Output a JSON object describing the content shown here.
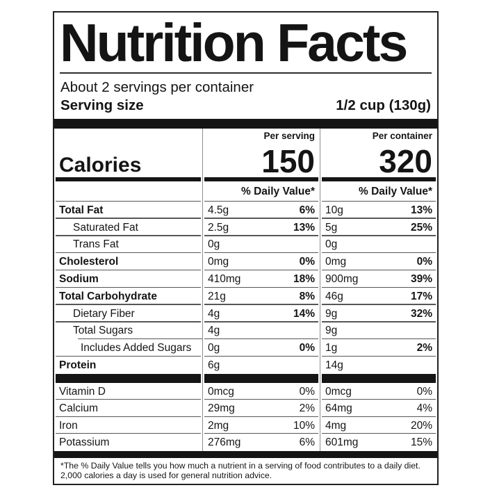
{
  "header": {
    "title": "Nutrition Facts",
    "servings_per_container": "About 2 servings per container",
    "serving_size_label": "Serving size",
    "serving_size_value": "1/2 cup (130g)"
  },
  "calories": {
    "label": "Calories",
    "daily_value_header": "% Daily Value*",
    "columns": [
      {
        "heading": "Per serving",
        "value": "150"
      },
      {
        "heading": "Per container",
        "value": "320"
      }
    ]
  },
  "nutrients": [
    {
      "name": "Total Fat",
      "bold": true,
      "indent": 0,
      "serving_amount": "4.5g",
      "serving_dv": "6%",
      "container_amount": "10g",
      "container_dv": "13%"
    },
    {
      "name": "Saturated Fat",
      "bold": false,
      "indent": 1,
      "serving_amount": "2.5g",
      "serving_dv": "13%",
      "container_amount": "5g",
      "container_dv": "25%"
    },
    {
      "name": "Trans Fat",
      "bold": false,
      "indent": 1,
      "serving_amount": "0g",
      "serving_dv": "",
      "container_amount": "0g",
      "container_dv": ""
    },
    {
      "name": "Cholesterol",
      "bold": true,
      "indent": 0,
      "serving_amount": "0mg",
      "serving_dv": "0%",
      "container_amount": "0mg",
      "container_dv": "0%"
    },
    {
      "name": "Sodium",
      "bold": true,
      "indent": 0,
      "serving_amount": "410mg",
      "serving_dv": "18%",
      "container_amount": "900mg",
      "container_dv": "39%"
    },
    {
      "name": "Total Carbohydrate",
      "bold": true,
      "indent": 0,
      "serving_amount": "21g",
      "serving_dv": "8%",
      "container_amount": "46g",
      "container_dv": "17%"
    },
    {
      "name": "Dietary Fiber",
      "bold": false,
      "indent": 1,
      "serving_amount": "4g",
      "serving_dv": "14%",
      "container_amount": "9g",
      "container_dv": "32%"
    },
    {
      "name": "Total Sugars",
      "bold": false,
      "indent": 1,
      "indented_separator_below": true,
      "serving_amount": "4g",
      "serving_dv": "",
      "container_amount": "9g",
      "container_dv": ""
    },
    {
      "name": "Includes Added Sugars",
      "bold": false,
      "indent": 2,
      "serving_amount": "0g",
      "serving_dv": "0%",
      "container_amount": "1g",
      "container_dv": "2%"
    },
    {
      "name": "Protein",
      "bold": true,
      "indent": 0,
      "serving_amount": "6g",
      "serving_dv": "",
      "container_amount": "14g",
      "container_dv": ""
    }
  ],
  "micronutrients": [
    {
      "name": "Vitamin D",
      "serving_amount": "0mcg",
      "serving_dv": "0%",
      "container_amount": "0mcg",
      "container_dv": "0%"
    },
    {
      "name": "Calcium",
      "serving_amount": "29mg",
      "serving_dv": "2%",
      "container_amount": "64mg",
      "container_dv": "4%"
    },
    {
      "name": "Iron",
      "serving_amount": "2mg",
      "serving_dv": "10%",
      "container_amount": "4mg",
      "container_dv": "20%"
    },
    {
      "name": "Potassium",
      "serving_amount": "276mg",
      "serving_dv": "6%",
      "container_amount": "601mg",
      "container_dv": "15%"
    }
  ],
  "footnote": "*The % Daily Value tells you how much a nutrient in a serving of food contributes to a daily diet. 2,000 calories a day is used for general nutrition advice.",
  "colors": {
    "text": "#141414",
    "bar": "#151515",
    "hairline": "#565656",
    "divider": "#8f8f8f",
    "background": "#ffffff"
  }
}
